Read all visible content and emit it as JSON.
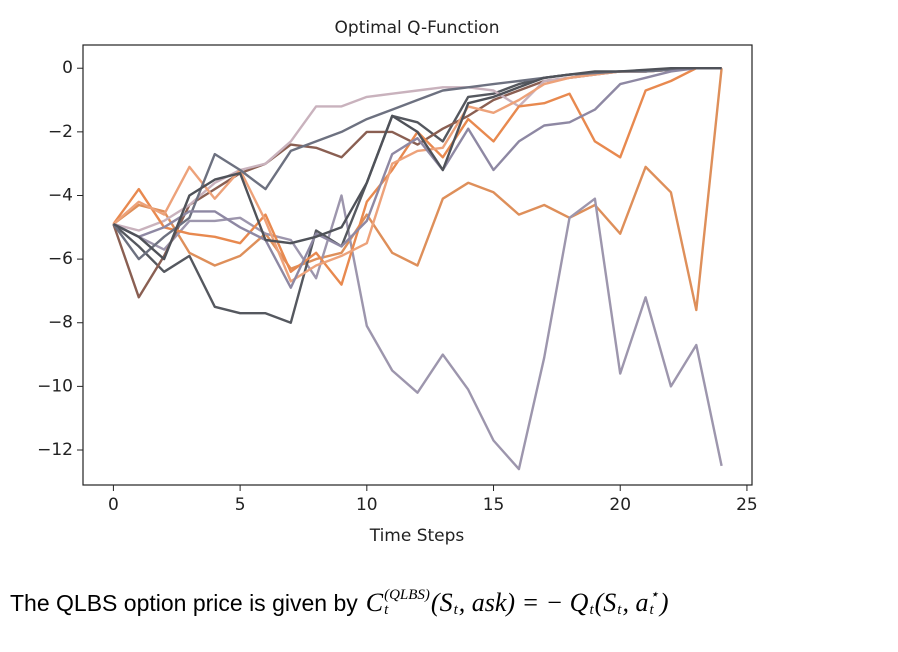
{
  "chart_data": {
    "type": "line",
    "title": "Optimal Q-Function",
    "xlabel": "Time Steps",
    "x": [
      0,
      1,
      2,
      3,
      4,
      5,
      6,
      7,
      8,
      9,
      10,
      11,
      12,
      13,
      14,
      15,
      16,
      17,
      18,
      19,
      20,
      21,
      22,
      23,
      24
    ],
    "xlim": [
      -1.2,
      25.2
    ],
    "xticks": [
      0,
      5,
      10,
      15,
      20,
      25
    ],
    "ylim": [
      -13.1,
      0.73
    ],
    "yticks": [
      {
        "value": -12,
        "label": "−12"
      },
      {
        "value": -10,
        "label": "−10"
      },
      {
        "value": -8,
        "label": "−8"
      },
      {
        "value": -6,
        "label": "−6"
      },
      {
        "value": -4,
        "label": "−4"
      },
      {
        "value": -2,
        "label": "−2"
      },
      0
    ],
    "grid": false,
    "series": [
      {
        "color": "#de8f5a",
        "values": [
          -4.9,
          -4.3,
          -4.5,
          -5.8,
          -6.2,
          -5.9,
          -5.2,
          -6.3,
          -6.0,
          -5.8,
          -4.6,
          -5.8,
          -6.2,
          -4.1,
          -3.6,
          -3.9,
          -4.6,
          -4.3,
          -4.7,
          -4.3,
          -5.2,
          -3.1,
          -3.9,
          -7.6,
          0
        ]
      },
      {
        "color": "#9d96ad",
        "values": [
          -4.9,
          -5.3,
          -5.7,
          -4.8,
          -4.8,
          -4.7,
          -5.2,
          -5.4,
          -6.6,
          -4.0,
          -8.1,
          -9.5,
          -10.2,
          -9.0,
          -10.1,
          -11.7,
          -12.6,
          -9.1,
          -4.7,
          -4.1,
          -9.6,
          -7.2,
          -10.0,
          -8.7,
          -12.5
        ]
      },
      {
        "color": "#55585f",
        "values": [
          -4.9,
          -5.6,
          -6.4,
          -5.9,
          -7.5,
          -7.7,
          -7.7,
          -8.0,
          -5.1,
          -5.6,
          -3.6,
          -1.5,
          -1.7,
          -2.3,
          -0.9,
          -0.8,
          -0.5,
          -0.3,
          -0.2,
          -0.15,
          -0.1,
          -0.1,
          -0.05,
          0,
          0
        ]
      },
      {
        "color": "#8a5f52",
        "values": [
          -4.9,
          -7.2,
          -5.9,
          -4.3,
          -3.8,
          -3.3,
          -3.0,
          -2.4,
          -2.5,
          -2.8,
          -2.0,
          -2.0,
          -2.4,
          -1.9,
          -1.5,
          -1.0,
          -0.7,
          -0.4,
          -0.3,
          -0.2,
          -0.1,
          -0.1,
          -0.05,
          0,
          0
        ]
      },
      {
        "color": "#c9b2bd",
        "values": [
          -4.9,
          -5.1,
          -4.8,
          -4.3,
          -3.6,
          -3.2,
          -3.0,
          -2.3,
          -1.2,
          -1.2,
          -0.9,
          -0.8,
          -0.7,
          -0.6,
          -0.6,
          -0.7,
          -1.2,
          -0.4,
          -0.3,
          -0.2,
          -0.1,
          -0.1,
          -0.05,
          0,
          0
        ]
      },
      {
        "color": "#e8894f",
        "values": [
          -4.9,
          -3.8,
          -5.0,
          -5.2,
          -5.3,
          -5.5,
          -4.6,
          -6.4,
          -5.8,
          -6.8,
          -4.2,
          -3.2,
          -2.0,
          -2.8,
          -1.6,
          -2.3,
          -1.2,
          -1.1,
          -0.8,
          -2.3,
          -2.8,
          -0.7,
          -0.4,
          0,
          0
        ]
      },
      {
        "color": "#eda27a",
        "values": [
          -4.9,
          -4.2,
          -4.6,
          -3.1,
          -4.1,
          -3.2,
          -4.8,
          -6.7,
          -6.2,
          -5.9,
          -5.5,
          -3.0,
          -2.6,
          -2.5,
          -1.2,
          -1.4,
          -1.0,
          -0.5,
          -0.3,
          -0.2,
          -0.1,
          -0.1,
          -0.05,
          0,
          0
        ]
      },
      {
        "color": "#6d7180",
        "values": [
          -4.9,
          -6.0,
          -5.3,
          -4.7,
          -2.7,
          -3.2,
          -3.8,
          -2.6,
          -2.3,
          -2.0,
          -1.6,
          -1.3,
          -1.0,
          -0.7,
          -0.6,
          -0.5,
          -0.4,
          -0.3,
          -0.2,
          -0.15,
          -0.1,
          -0.1,
          -0.05,
          0,
          0
        ]
      },
      {
        "color": "#8e88a3",
        "values": [
          -4.9,
          -5.3,
          -5.0,
          -4.5,
          -4.5,
          -5.0,
          -5.4,
          -6.9,
          -5.2,
          -5.6,
          -4.8,
          -2.7,
          -2.2,
          -3.2,
          -1.9,
          -3.2,
          -2.3,
          -1.8,
          -1.7,
          -1.3,
          -0.5,
          -0.3,
          -0.1,
          0,
          0
        ]
      },
      {
        "color": "#4f5259",
        "values": [
          -4.9,
          -5.3,
          -6.0,
          -4.0,
          -3.5,
          -3.3,
          -5.4,
          -5.5,
          -5.3,
          -5.0,
          -3.6,
          -1.5,
          -2.0,
          -3.2,
          -1.1,
          -0.9,
          -0.6,
          -0.3,
          -0.2,
          -0.1,
          -0.1,
          -0.05,
          0,
          0,
          0
        ]
      }
    ]
  },
  "caption": {
    "text": "The QLBS option price is given by",
    "formula": [
      {
        "text": "C"
      },
      {
        "sub": "t",
        "sup": "(QLBS)"
      },
      {
        "text": "(S"
      },
      {
        "sub": "t"
      },
      {
        "text": ", ask) = − Q"
      },
      {
        "sub": "t"
      },
      {
        "text": "(S"
      },
      {
        "sub": "t"
      },
      {
        "text": ", a"
      },
      {
        "sub": "t",
        "sup": "⋆"
      },
      {
        "text": ")"
      }
    ]
  }
}
